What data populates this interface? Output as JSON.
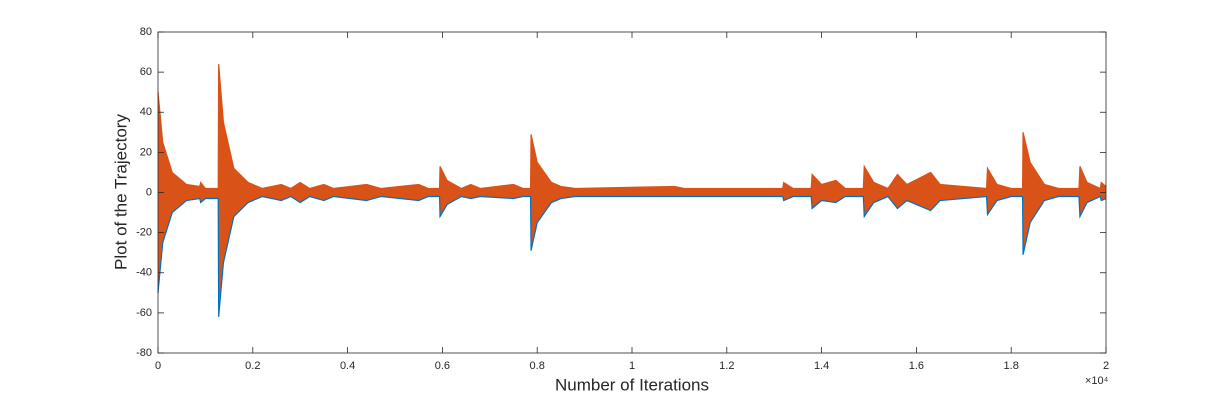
{
  "chart_data": {
    "type": "band",
    "xlabel": "Number of Iterations",
    "ylabel": "Plot of the Trajectory",
    "x_multiplier": "×10⁴",
    "x": [
      0,
      100,
      300,
      600,
      880,
      900,
      1000,
      1270,
      1280,
      1380,
      1600,
      1900,
      2000,
      2200,
      2600,
      2800,
      3000,
      3200,
      3500,
      3700,
      4400,
      4700,
      5500,
      5700,
      5940,
      5950,
      6100,
      6400,
      6600,
      6800,
      7500,
      7700,
      7860,
      7870,
      8000,
      8300,
      8500,
      8800,
      10900,
      11100,
      13180,
      13200,
      13400,
      13780,
      13800,
      14000,
      14300,
      14500,
      14880,
      14900,
      15100,
      15400,
      15600,
      15800,
      16300,
      16500,
      17480,
      17500,
      17700,
      18000,
      18240,
      18250,
      18400,
      18700,
      19000,
      19430,
      19450,
      19600,
      19880,
      19900,
      20000
    ],
    "series": [
      {
        "color": "#0072bd",
        "values": [
          -50,
          -25,
          -10,
          -4,
          -3,
          -5,
          -3,
          -3,
          -62,
          -35,
          -12,
          -5,
          -4,
          -2,
          -4,
          -2,
          -5,
          -2,
          -4,
          -2,
          -4,
          -2,
          -4,
          -2,
          -2,
          -12,
          -6,
          -2,
          -3,
          -2,
          -3,
          -2,
          -2,
          -29,
          -15,
          -5,
          -3,
          -2,
          -2,
          -2,
          -2,
          -4,
          -2,
          -2,
          -8,
          -4,
          -5,
          -2,
          -2,
          -12,
          -5,
          -2,
          -8,
          -4,
          -9,
          -4,
          -2,
          -11,
          -4,
          -2,
          -2,
          -31,
          -15,
          -4,
          -2,
          -2,
          -12,
          -5,
          -2,
          -4,
          -3
        ]
      },
      {
        "color": "#d95319",
        "values": [
          50,
          25,
          10,
          4,
          3,
          5,
          2,
          2,
          64,
          35,
          12,
          5,
          4,
          2,
          4,
          2,
          5,
          2,
          4,
          2,
          4,
          2,
          4,
          2,
          2,
          13,
          6,
          2,
          4,
          2,
          4,
          2,
          2,
          29,
          15,
          5,
          3,
          2,
          3,
          2,
          2,
          5,
          2,
          2,
          9,
          4,
          6,
          2,
          2,
          13,
          5,
          2,
          9,
          4,
          10,
          4,
          2,
          12,
          4,
          2,
          2,
          30,
          15,
          4,
          2,
          2,
          13,
          5,
          2,
          5,
          3
        ]
      }
    ],
    "xlim": [
      0,
      20000
    ],
    "xticks": [
      {
        "value": 0,
        "label": "0"
      },
      {
        "value": 2000,
        "label": "0.2"
      },
      {
        "value": 4000,
        "label": "0.4"
      },
      {
        "value": 6000,
        "label": "0.6"
      },
      {
        "value": 8000,
        "label": "0.8"
      },
      {
        "value": 10000,
        "label": "1"
      },
      {
        "value": 12000,
        "label": "1.2"
      },
      {
        "value": 14000,
        "label": "1.4"
      },
      {
        "value": 16000,
        "label": "1.6"
      },
      {
        "value": 18000,
        "label": "1.8"
      },
      {
        "value": 20000,
        "label": "2"
      }
    ],
    "ylim": [
      -80,
      80
    ],
    "yticks": [
      -80,
      -60,
      -40,
      -20,
      0,
      20,
      40,
      60,
      80
    ]
  }
}
